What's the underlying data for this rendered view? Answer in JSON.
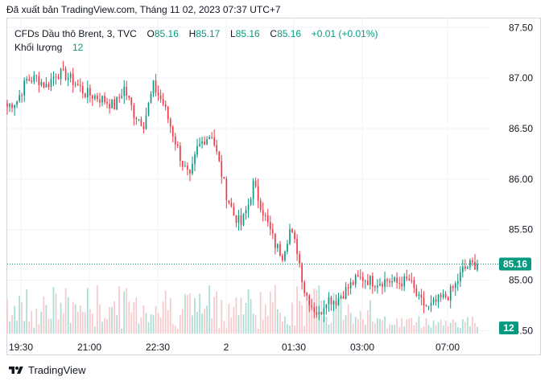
{
  "header": {
    "published": "Đã xuất bản TradingView.com, Tháng 11 02, 2023 07:37 UTC+7"
  },
  "legend": {
    "symbol": "CFDs Dầu thô Brent, 3, TVC",
    "open_key": "O",
    "open": "85.16",
    "high_key": "H",
    "high": "85.17",
    "low_key": "L",
    "low": "85.16",
    "close_key": "C",
    "close": "85.16",
    "change": "+0.01 (+0.01%)",
    "volume_label": "Khối lượng",
    "volume": "12"
  },
  "footer": {
    "brand": "TradingView",
    "logo_icon": "tradingview-logo-icon"
  },
  "colors": {
    "up": "#089981",
    "down": "#f23645",
    "up_vol": "#a9dcd3",
    "down_vol": "#f7c7ca",
    "grid": "#f0f3fa"
  },
  "chart_data": {
    "type": "candlestick",
    "y_ticks": [
      "87.50",
      "87.00",
      "86.50",
      "86.00",
      "85.50",
      "85.00",
      "84.50"
    ],
    "y_range": [
      84.4,
      87.55
    ],
    "x_ticks": [
      "19:30",
      "21:00",
      "22:30",
      "2",
      "01:30",
      "03:00",
      "07:00"
    ],
    "last_price": "85.16",
    "last_volume": "12",
    "anchors": [
      [
        0,
        86.72
      ],
      [
        4,
        86.78
      ],
      [
        8,
        86.98
      ],
      [
        12,
        87.0
      ],
      [
        16,
        86.92
      ],
      [
        20,
        87.05
      ],
      [
        24,
        87.03
      ],
      [
        28,
        86.95
      ],
      [
        32,
        86.85
      ],
      [
        36,
        86.82
      ],
      [
        40,
        86.78
      ],
      [
        44,
        86.72
      ],
      [
        48,
        86.9
      ],
      [
        52,
        86.65
      ],
      [
        56,
        86.55
      ],
      [
        60,
        86.92
      ],
      [
        64,
        86.75
      ],
      [
        68,
        86.45
      ],
      [
        72,
        86.15
      ],
      [
        75,
        86.0
      ],
      [
        78,
        86.3
      ],
      [
        81,
        86.4
      ],
      [
        84,
        86.45
      ],
      [
        87,
        86.15
      ],
      [
        90,
        85.85
      ],
      [
        93,
        85.65
      ],
      [
        96,
        85.55
      ],
      [
        99,
        85.75
      ],
      [
        101,
        85.95
      ],
      [
        104,
        85.75
      ],
      [
        107,
        85.55
      ],
      [
        110,
        85.35
      ],
      [
        113,
        85.25
      ],
      [
        116,
        85.5
      ],
      [
        119,
        85.3
      ],
      [
        122,
        84.9
      ],
      [
        125,
        84.75
      ],
      [
        128,
        84.65
      ],
      [
        131,
        84.82
      ],
      [
        135,
        84.8
      ],
      [
        139,
        84.9
      ],
      [
        143,
        85.0
      ],
      [
        146,
        85.02
      ],
      [
        151,
        84.98
      ],
      [
        156,
        85.0
      ],
      [
        160,
        84.97
      ],
      [
        165,
        85.0
      ],
      [
        169,
        84.8
      ],
      [
        173,
        84.72
      ],
      [
        177,
        84.8
      ],
      [
        181,
        84.85
      ],
      [
        184,
        84.95
      ],
      [
        187,
        85.1
      ],
      [
        190,
        85.15
      ],
      [
        193,
        85.16
      ]
    ]
  }
}
